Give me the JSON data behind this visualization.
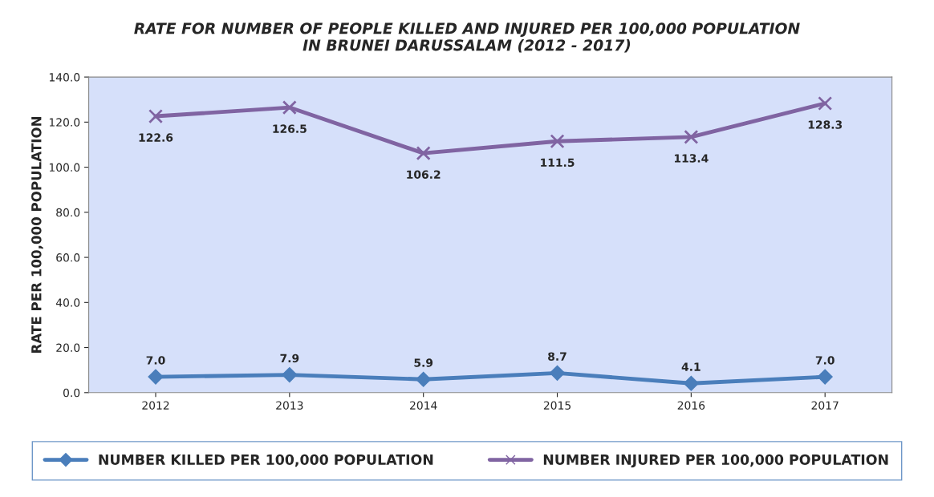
{
  "chart_data": {
    "type": "line",
    "title": "RATE FOR NUMBER OF PEOPLE KILLED AND INJURED PER 100,000 POPULATION\nIN BRUNEI DARUSSALAM (2012 - 2017)",
    "ylabel": "RATE PER 100,000 POPULATION",
    "categories": [
      "2012",
      "2013",
      "2014",
      "2015",
      "2016",
      "2017"
    ],
    "series": [
      {
        "name": "NUMBER KILLED PER 100,000 POPULATION",
        "color": "#4a7ebb",
        "marker": "diamond",
        "values": [
          7.0,
          7.9,
          5.9,
          8.7,
          4.1,
          7.0
        ],
        "value_labels": [
          "7.0",
          "7.9",
          "5.9",
          "8.7",
          "4.1",
          "7.0"
        ]
      },
      {
        "name": "NUMBER INJURED PER 100,000 POPULATION",
        "color": "#8064a2",
        "marker": "cross",
        "values": [
          122.6,
          126.5,
          106.2,
          111.5,
          113.4,
          128.3
        ],
        "value_labels": [
          "122.6",
          "126.5",
          "106.2",
          "111.5",
          "113.4",
          "128.3"
        ]
      }
    ],
    "ylim": [
      0,
      140
    ],
    "yticks": [
      {
        "value": 0,
        "label": "0.0"
      },
      {
        "value": 20,
        "label": "20.0"
      },
      {
        "value": 40,
        "label": "40.0"
      },
      {
        "value": 60,
        "label": "60.0"
      },
      {
        "value": 80,
        "label": "80.0"
      },
      {
        "value": 100,
        "label": "100.0"
      },
      {
        "value": 120,
        "label": "120.0"
      },
      {
        "value": 140,
        "label": "140.0"
      }
    ],
    "grid": false,
    "legend": "bottom",
    "line_style": "solid"
  }
}
